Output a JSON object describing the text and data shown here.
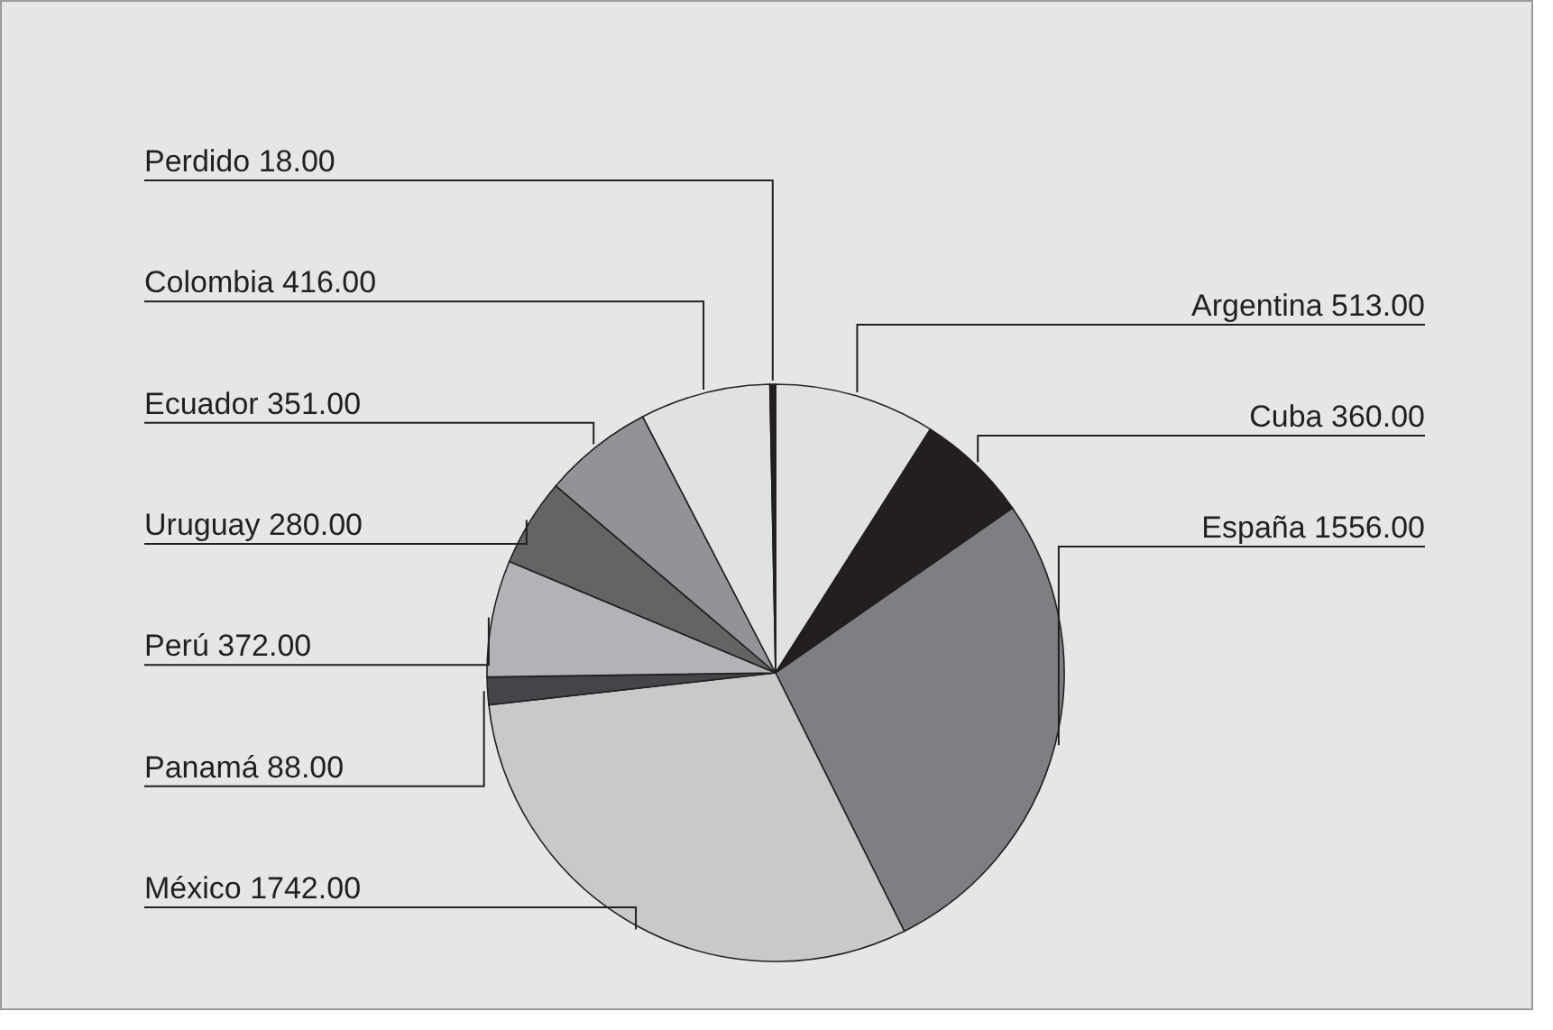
{
  "chart_data": {
    "type": "pie",
    "categories": [
      "Argentina",
      "Cuba",
      "España",
      "México",
      "Panamá",
      "Perú",
      "Uruguay",
      "Ecuador",
      "Colombia",
      "Perdido"
    ],
    "values": [
      513,
      360,
      1556,
      1742,
      88,
      372,
      280,
      351,
      416,
      18
    ],
    "value_labels": [
      "513.00",
      "360.00",
      "1556.00",
      "1742.00",
      "88.00",
      "372.00",
      "280.00",
      "351.00",
      "416.00",
      "18.00"
    ],
    "colors": [
      "#e0e1e3",
      "#231f20",
      "#7e7f83",
      "#c8c9cb",
      "#444548",
      "#b2b3b6",
      "#636466",
      "#929396",
      "#e0e1e3",
      "#231f20"
    ]
  }
}
